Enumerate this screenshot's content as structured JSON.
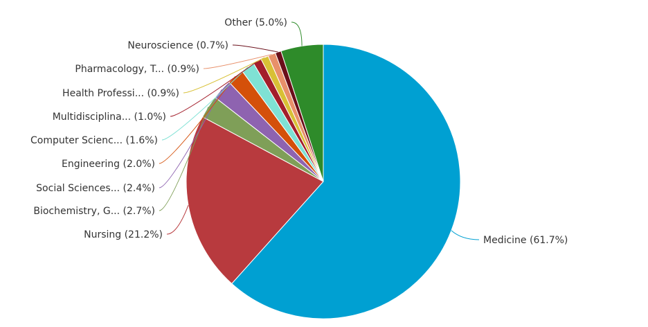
{
  "chart_data": {
    "type": "pie",
    "title": "",
    "slices": [
      {
        "label": "Medicine (61.7%)",
        "value": 61.7,
        "color": "#00A0D2"
      },
      {
        "label": "Nursing (21.2%)",
        "value": 21.2,
        "color": "#B83A3E"
      },
      {
        "label": "Biochemistry, G... (2.7%)",
        "value": 2.7,
        "color": "#7F9F58"
      },
      {
        "label": "Social Sciences... (2.4%)",
        "value": 2.4,
        "color": "#8E63B0"
      },
      {
        "label": "Engineering (2.0%)",
        "value": 2.0,
        "color": "#D4500A"
      },
      {
        "label": "Computer Scienc... (1.6%)",
        "value": 1.6,
        "color": "#7FE1D4"
      },
      {
        "label": "Multidisciplina... (1.0%)",
        "value": 1.0,
        "color": "#A31E2B"
      },
      {
        "label": "Health Professi... (0.9%)",
        "value": 0.9,
        "color": "#D8C035"
      },
      {
        "label": "Pharmacology, T... (0.9%)",
        "value": 0.9,
        "color": "#E8906A"
      },
      {
        "label": "Neuroscience (0.7%)",
        "value": 0.7,
        "color": "#6A0F1A"
      },
      {
        "label": "Other (5.0%)",
        "value": 5.0,
        "color": "#2E8B2A"
      }
    ]
  }
}
